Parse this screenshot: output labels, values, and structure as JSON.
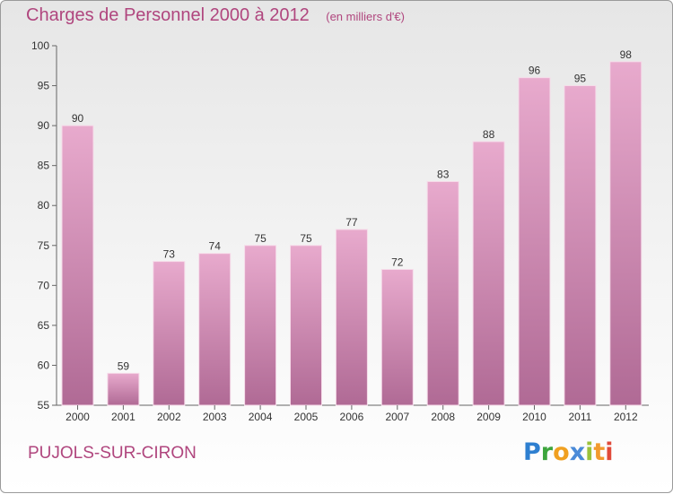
{
  "title": "Charges de Personnel 2000 à 2012",
  "unit": "(en milliers d'€)",
  "commune": "PUJOLS-SUR-CIRON",
  "logo": "Proxiti",
  "colors": {
    "text_accent": "#b0467e",
    "bar_top": "#e8aacd",
    "bar_bottom": "#b06a95",
    "axis": "#666666"
  },
  "chart_data": {
    "type": "bar",
    "title": "Charges de Personnel 2000 à 2012",
    "subtitle": "(en milliers d'€)",
    "xlabel": "",
    "ylabel": "",
    "categories": [
      "2000",
      "2001",
      "2002",
      "2003",
      "2004",
      "2005",
      "2006",
      "2007",
      "2008",
      "2009",
      "2010",
      "2011",
      "2012"
    ],
    "values": [
      90,
      59,
      73,
      74,
      75,
      75,
      77,
      72,
      83,
      88,
      96,
      95,
      98
    ],
    "ylim": [
      55,
      100
    ],
    "yticks": [
      55,
      60,
      65,
      70,
      75,
      80,
      85,
      90,
      95,
      100
    ],
    "grid": false,
    "legend": "none"
  }
}
